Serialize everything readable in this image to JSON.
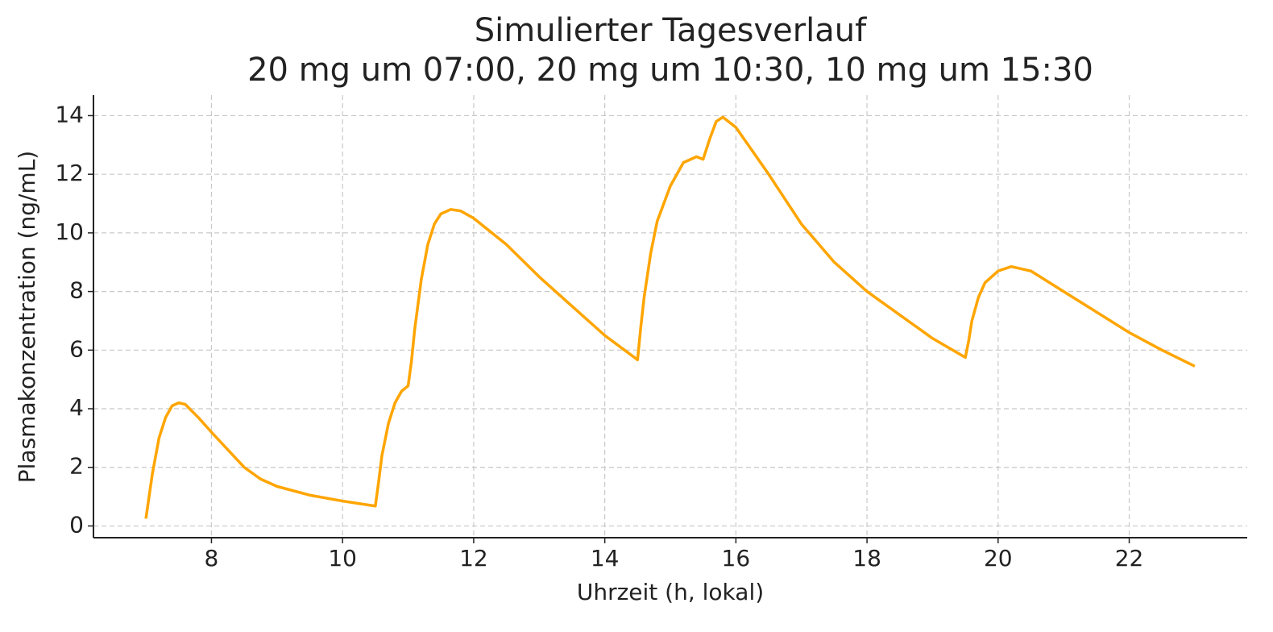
{
  "chart_data": {
    "type": "line",
    "title": "Simulierter Tagesverlauf",
    "subtitle": "20 mg um 07:00, 20 mg um 10:30, 10 mg um 15:30",
    "x_label": "Uhrzeit (h, lokal)",
    "y_label": "Plasmakonzentration (ng/mL)",
    "x": [
      7.0,
      7.1,
      7.2,
      7.3,
      7.4,
      7.5,
      7.6,
      7.8,
      8.0,
      8.25,
      8.5,
      8.75,
      9.0,
      9.5,
      10.0,
      10.5,
      10.55,
      10.6,
      10.7,
      10.8,
      10.9,
      11.0,
      11.05,
      11.1,
      11.2,
      11.3,
      11.4,
      11.5,
      11.65,
      11.8,
      12.0,
      12.5,
      13.0,
      13.5,
      14.0,
      14.5,
      14.55,
      14.6,
      14.7,
      14.8,
      15.0,
      15.2,
      15.4,
      15.5,
      15.6,
      15.7,
      15.8,
      16.0,
      16.5,
      17.0,
      17.5,
      18.0,
      18.5,
      19.0,
      19.5,
      19.55,
      19.6,
      19.7,
      19.8,
      20.0,
      20.2,
      20.5,
      21.0,
      21.5,
      22.0,
      22.5,
      23.0
    ],
    "series": [
      {
        "name": "Plasmakonzentration",
        "color": "#ffa500",
        "values": [
          0.25,
          1.8,
          3.0,
          3.7,
          4.1,
          4.2,
          4.15,
          3.7,
          3.2,
          2.6,
          2.0,
          1.6,
          1.35,
          1.05,
          0.85,
          0.68,
          1.5,
          2.4,
          3.5,
          4.2,
          4.6,
          4.78,
          5.6,
          6.7,
          8.4,
          9.6,
          10.3,
          10.65,
          10.8,
          10.75,
          10.5,
          9.6,
          8.5,
          7.5,
          6.5,
          5.67,
          6.8,
          7.8,
          9.3,
          10.4,
          11.6,
          12.4,
          12.6,
          12.51,
          13.2,
          13.8,
          13.95,
          13.6,
          12.0,
          10.3,
          9.0,
          8.0,
          7.2,
          6.4,
          5.75,
          6.3,
          7.0,
          7.8,
          8.3,
          8.7,
          8.85,
          8.7,
          8.0,
          7.3,
          6.6,
          6.0,
          5.45
        ]
      }
    ],
    "xlim": [
      6.2,
      23.8
    ],
    "ylim": [
      -0.4,
      14.7
    ],
    "xticks": [
      8,
      10,
      12,
      14,
      16,
      18,
      20,
      22
    ],
    "yticks": [
      0,
      2,
      4,
      6,
      8,
      10,
      12,
      14
    ],
    "grid": true
  }
}
